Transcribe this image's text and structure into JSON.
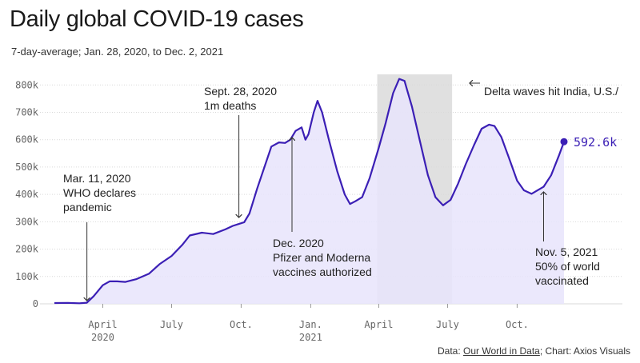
{
  "header": {
    "title": "Daily global COVID-19 cases",
    "subtitle": "7-day-average; Jan. 28, 2020, to Dec. 2, 2021"
  },
  "source": {
    "prefix": "Data: ",
    "link": "Our World in Data",
    "suffix": "; Chart: Axios Visuals"
  },
  "colors": {
    "line": "#3b1fb5",
    "area": "#e8e4fb",
    "shade": "#cfcfcf",
    "grid": "#d9d9d9",
    "axis_text": "#666666"
  },
  "chart_data": {
    "type": "area",
    "title": "Daily global COVID-19 cases",
    "subtitle": "7-day-average; Jan. 28, 2020, to Dec. 2, 2021",
    "y_ticks": [
      {
        "value": 0,
        "label": "0"
      },
      {
        "value": 100000,
        "label": "100k"
      },
      {
        "value": 200000,
        "label": "200k"
      },
      {
        "value": 300000,
        "label": "300k"
      },
      {
        "value": 400000,
        "label": "400k"
      },
      {
        "value": 500000,
        "label": "500k"
      },
      {
        "value": 600000,
        "label": "600k"
      },
      {
        "value": 700000,
        "label": "700k"
      },
      {
        "value": 800000,
        "label": "800k"
      }
    ],
    "x_ticks": [
      {
        "date": "2020-04-01",
        "label": "April",
        "sublabel": "2020"
      },
      {
        "date": "2020-07-01",
        "label": "July",
        "sublabel": ""
      },
      {
        "date": "2020-10-01",
        "label": "Oct.",
        "sublabel": ""
      },
      {
        "date": "2021-01-01",
        "label": "Jan.",
        "sublabel": "2021"
      },
      {
        "date": "2021-04-01",
        "label": "April",
        "sublabel": ""
      },
      {
        "date": "2021-07-01",
        "label": "July",
        "sublabel": ""
      },
      {
        "date": "2021-10-01",
        "label": "Oct.",
        "sublabel": ""
      }
    ],
    "ylim": [
      0,
      830000
    ],
    "xlim": [
      "2020-01-28",
      "2021-12-02"
    ],
    "grid": true,
    "series": [
      {
        "points": [
          [
            "2020-01-28",
            3000
          ],
          [
            "2020-02-15",
            3500
          ],
          [
            "2020-03-01",
            2000
          ],
          [
            "2020-03-11",
            4000
          ],
          [
            "2020-03-20",
            28000
          ],
          [
            "2020-04-01",
            68000
          ],
          [
            "2020-04-10",
            82000
          ],
          [
            "2020-04-20",
            82000
          ],
          [
            "2020-05-01",
            80000
          ],
          [
            "2020-05-15",
            90000
          ],
          [
            "2020-06-01",
            110000
          ],
          [
            "2020-06-15",
            145000
          ],
          [
            "2020-07-01",
            175000
          ],
          [
            "2020-07-15",
            215000
          ],
          [
            "2020-07-25",
            250000
          ],
          [
            "2020-08-10",
            260000
          ],
          [
            "2020-08-25",
            255000
          ],
          [
            "2020-09-10",
            272000
          ],
          [
            "2020-09-20",
            285000
          ],
          [
            "2020-09-28",
            292000
          ],
          [
            "2020-10-05",
            298000
          ],
          [
            "2020-10-12",
            330000
          ],
          [
            "2020-10-22",
            420000
          ],
          [
            "2020-11-02",
            510000
          ],
          [
            "2020-11-10",
            575000
          ],
          [
            "2020-11-20",
            590000
          ],
          [
            "2020-11-28",
            588000
          ],
          [
            "2020-12-05",
            600000
          ],
          [
            "2020-12-12",
            632000
          ],
          [
            "2020-12-20",
            645000
          ],
          [
            "2020-12-25",
            600000
          ],
          [
            "2020-12-29",
            620000
          ],
          [
            "2021-01-05",
            700000
          ],
          [
            "2021-01-10",
            742000
          ],
          [
            "2021-01-16",
            700000
          ],
          [
            "2021-01-25",
            600000
          ],
          [
            "2021-02-05",
            485000
          ],
          [
            "2021-02-15",
            400000
          ],
          [
            "2021-02-22",
            365000
          ],
          [
            "2021-03-01",
            375000
          ],
          [
            "2021-03-10",
            390000
          ],
          [
            "2021-03-20",
            460000
          ],
          [
            "2021-04-01",
            570000
          ],
          [
            "2021-04-10",
            660000
          ],
          [
            "2021-04-20",
            770000
          ],
          [
            "2021-04-28",
            822000
          ],
          [
            "2021-05-05",
            815000
          ],
          [
            "2021-05-15",
            720000
          ],
          [
            "2021-05-25",
            600000
          ],
          [
            "2021-06-05",
            470000
          ],
          [
            "2021-06-15",
            390000
          ],
          [
            "2021-06-25",
            360000
          ],
          [
            "2021-07-05",
            380000
          ],
          [
            "2021-07-15",
            440000
          ],
          [
            "2021-07-25",
            510000
          ],
          [
            "2021-08-05",
            580000
          ],
          [
            "2021-08-15",
            640000
          ],
          [
            "2021-08-25",
            655000
          ],
          [
            "2021-09-01",
            650000
          ],
          [
            "2021-09-10",
            610000
          ],
          [
            "2021-09-20",
            535000
          ],
          [
            "2021-10-01",
            450000
          ],
          [
            "2021-10-10",
            415000
          ],
          [
            "2021-10-20",
            402000
          ],
          [
            "2021-11-05",
            428000
          ],
          [
            "2021-11-15",
            470000
          ],
          [
            "2021-11-25",
            540000
          ],
          [
            "2021-12-02",
            592600
          ]
        ]
      }
    ],
    "last_value_label": "592.6k",
    "shaded_region": {
      "start": "2021-03-30",
      "end": "2021-07-07"
    },
    "annotations": [
      {
        "date": "2020-03-11",
        "lines": [
          "Mar. 11, 2020",
          "WHO declares",
          "pandemic"
        ],
        "pointer": "down"
      },
      {
        "date": "2020-09-28",
        "lines": [
          "Sept. 28, 2020",
          "1m deaths"
        ],
        "pointer": "down"
      },
      {
        "date": "2020-12-01",
        "lines": [
          "Dec. 2020",
          "Pfizer and Moderna",
          "vaccines authorized"
        ],
        "pointer": "up"
      },
      {
        "date": "2021-07-07",
        "lines": [
          "Delta waves hit India, U.S./"
        ],
        "pointer": "left"
      },
      {
        "date": "2021-11-05",
        "lines": [
          "Nov. 5, 2021",
          "50% of world",
          "vaccinated"
        ],
        "pointer": "up"
      }
    ]
  }
}
